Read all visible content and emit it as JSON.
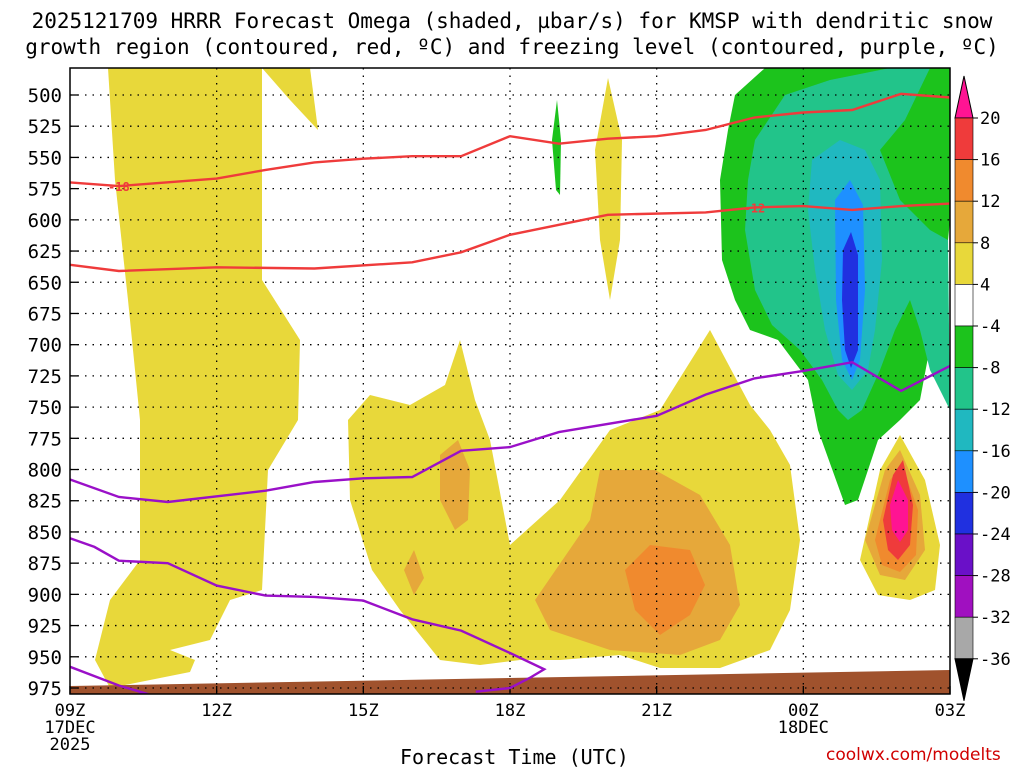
{
  "title_line1": "2025121709 HRRR Forecast Omega (shaded, µbar/s) for KMSP with dendritic snow",
  "title_line2": "growth region (contoured, red, ºC) and freezing level (contoured, purple, ºC)",
  "xlabel": "Forecast Time (UTC)",
  "credit": "coolwx.com/modelts",
  "chart_data": {
    "type": "heatmap",
    "model": "HRRR",
    "station": "KMSP",
    "init": "2025121709",
    "x_ticks": [
      {
        "hour": 0,
        "line1": "09Z",
        "line2": "17DEC",
        "line3": "2025"
      },
      {
        "hour": 3,
        "line1": "12Z"
      },
      {
        "hour": 6,
        "line1": "15Z"
      },
      {
        "hour": 9,
        "line1": "18Z"
      },
      {
        "hour": 12,
        "line1": "21Z"
      },
      {
        "hour": 15,
        "line1": "00Z",
        "line2": "18DEC"
      },
      {
        "hour": 18,
        "line1": "03Z"
      }
    ],
    "xlim_hours": [
      0,
      18
    ],
    "ylim_hpa": [
      985,
      485
    ],
    "y_ticks": [
      "500",
      "525",
      "550",
      "575",
      "600",
      "625",
      "650",
      "675",
      "700",
      "725",
      "750",
      "775",
      "800",
      "825",
      "850",
      "875",
      "900",
      "925",
      "950",
      "975"
    ],
    "colorbar": {
      "labels": [
        "20",
        "16",
        "12",
        "8",
        "4",
        "-4",
        "-8",
        "-12",
        "-16",
        "-20",
        "-24",
        "-28",
        "-32",
        "-36"
      ],
      "colors": [
        "#ff1493",
        "#ef3b3b",
        "#f08a2e",
        "#e6a83a",
        "#e8d83a",
        "#ffffff",
        "#1cc31c",
        "#22c48a",
        "#20b8c0",
        "#1e90ff",
        "#2030e0",
        "#6a10c8",
        "#a010c0",
        "#a8a8a8",
        "#000000"
      ]
    },
    "omega_bands": [
      {
        "level": "4 to 8",
        "color": "#e8d83a"
      },
      {
        "level": "8 to 12",
        "color": "#e6a83a"
      },
      {
        "level": "12 to 16",
        "color": "#f08a2e"
      },
      {
        "level": "16 to 20",
        "color": "#ef3b3b"
      },
      {
        "level": ">20",
        "color": "#ff1493"
      },
      {
        "level": "-8 to -4",
        "color": "#1cc31c"
      },
      {
        "level": "-12 to -8",
        "color": "#22c48a"
      },
      {
        "level": "-16 to -12",
        "color": "#20b8c0"
      },
      {
        "level": "-20 to -16",
        "color": "#1e90ff"
      },
      {
        "level": "-24 to -20",
        "color": "#2030e0"
      }
    ],
    "dgz_contours": [
      {
        "label": "-18",
        "color": "#ef3b3b",
        "points": [
          [
            0,
            570
          ],
          [
            1,
            573
          ],
          [
            3,
            567
          ],
          [
            4,
            560
          ],
          [
            5,
            554
          ],
          [
            6,
            551
          ],
          [
            7,
            549
          ],
          [
            8,
            549
          ],
          [
            9,
            533
          ],
          [
            10,
            539
          ],
          [
            11,
            535
          ],
          [
            12,
            533
          ],
          [
            13,
            528
          ],
          [
            14,
            518
          ],
          [
            15,
            514
          ],
          [
            16,
            512
          ],
          [
            17,
            499
          ],
          [
            18,
            502
          ]
        ]
      },
      {
        "label": "-12",
        "color": "#ef3b3b",
        "points": [
          [
            0,
            636
          ],
          [
            1,
            641
          ],
          [
            3,
            638
          ],
          [
            5,
            639
          ],
          [
            7,
            634
          ],
          [
            8,
            626
          ],
          [
            9,
            612
          ],
          [
            10,
            604
          ],
          [
            11,
            596
          ],
          [
            13,
            594
          ],
          [
            14,
            590
          ],
          [
            15,
            589
          ],
          [
            16,
            592
          ],
          [
            17,
            589
          ],
          [
            18,
            587
          ]
        ]
      }
    ],
    "freezing_contours": [
      {
        "label": "0",
        "color": "#9a10c8",
        "points": [
          [
            0,
            808
          ],
          [
            1,
            822
          ],
          [
            2,
            826
          ],
          [
            4,
            817
          ],
          [
            5,
            810
          ],
          [
            6,
            807
          ],
          [
            7,
            806
          ],
          [
            8,
            785
          ],
          [
            9,
            782
          ],
          [
            10,
            770
          ],
          [
            12,
            757
          ],
          [
            13,
            740
          ],
          [
            14,
            727
          ],
          [
            15,
            721
          ],
          [
            16,
            714
          ],
          [
            17,
            737
          ],
          [
            18,
            717
          ]
        ]
      },
      {
        "label": "0",
        "color": "#9a10c8",
        "points": [
          [
            0,
            855
          ],
          [
            0.5,
            862
          ],
          [
            1,
            873
          ],
          [
            2,
            875
          ],
          [
            3,
            893
          ],
          [
            4,
            901
          ],
          [
            5,
            902
          ],
          [
            6,
            905
          ],
          [
            7,
            920
          ],
          [
            8,
            929
          ],
          [
            9,
            947
          ],
          [
            9.7,
            960
          ],
          [
            9.4,
            967
          ],
          [
            9,
            975
          ],
          [
            8.3,
            978
          ]
        ]
      },
      {
        "label": "0",
        "color": "#9a10c8",
        "points": [
          [
            0,
            958
          ],
          [
            1,
            973
          ],
          [
            1.6,
            980
          ],
          [
            1.4,
            980
          ]
        ]
      }
    ]
  }
}
